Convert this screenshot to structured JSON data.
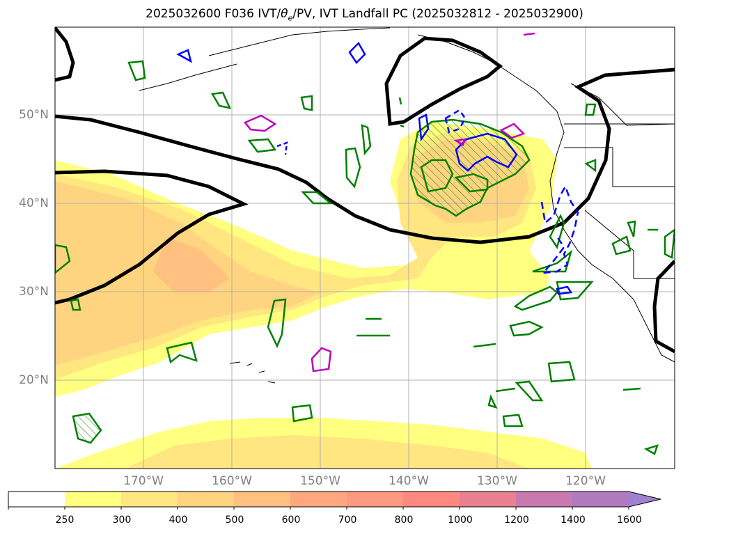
{
  "title": {
    "prefix": "2025032600 F036 IVT/",
    "theta_symbol": "θ",
    "theta_sub": "e",
    "suffix": "/PV, IVT Landfall PC (2025032812 - 2025032900)"
  },
  "map": {
    "lat_labels": [
      "50°N",
      "40°N",
      "30°N",
      "20°N"
    ],
    "lon_labels": [
      "170°W",
      "160°W",
      "150°W",
      "140°W",
      "130°W",
      "120°W"
    ],
    "grid": true,
    "ivt_fill_colors": [
      "#ffff80",
      "#ffe680",
      "#ffd480",
      "#ffc080"
    ],
    "contour_colors": {
      "thick": "#000000",
      "green": "#008000",
      "blue": "#0000ff",
      "magenta": "#c000c0"
    }
  },
  "colorbar": {
    "labels": [
      "250",
      "300",
      "400",
      "500",
      "600",
      "700",
      "800",
      "1000",
      "1200",
      "1400",
      "1600"
    ],
    "colors": [
      "#ffffff",
      "#ffff80",
      "#ffe680",
      "#ffd480",
      "#ffc080",
      "#ffa880",
      "#ff9880",
      "#ff8880",
      "#e88090",
      "#c87ab0",
      "#b07ac0",
      "#a080d0"
    ]
  }
}
